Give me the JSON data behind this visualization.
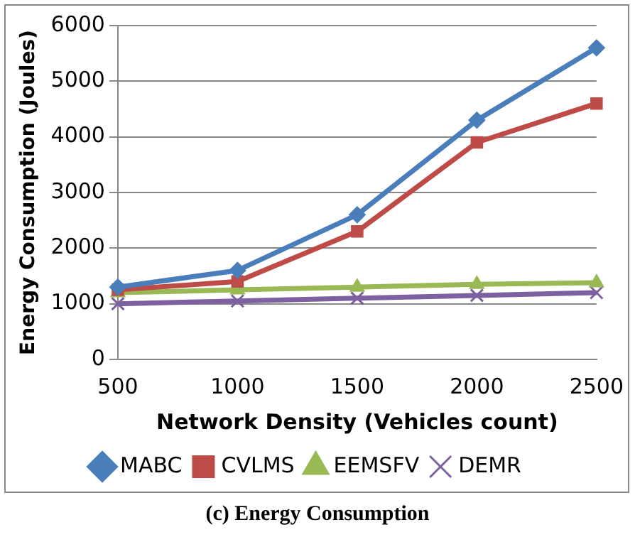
{
  "chart_data": {
    "type": "line",
    "xlabel": "Network Density (Vehicles count)",
    "ylabel": "Energy Consumption (Joules)",
    "categories": [
      "500",
      "1000",
      "1500",
      "2000",
      "2500"
    ],
    "series": [
      {
        "name": "MABC",
        "color": "#4a7ebb",
        "marker": "diamond",
        "values": [
          1300,
          1600,
          2600,
          4300,
          5600
        ]
      },
      {
        "name": "CVLMS",
        "color": "#be4b48",
        "marker": "square",
        "values": [
          1250,
          1400,
          2300,
          3900,
          4600
        ]
      },
      {
        "name": "EEMSFV",
        "color": "#98b954",
        "marker": "triangle",
        "values": [
          1200,
          1250,
          1300,
          1350,
          1380
        ]
      },
      {
        "name": "DEMR",
        "color": "#7d60a0",
        "marker": "cross",
        "values": [
          1000,
          1050,
          1100,
          1150,
          1200
        ]
      }
    ],
    "ylim": [
      0,
      6000
    ],
    "yticks": [
      0,
      1000,
      2000,
      3000,
      4000,
      5000,
      6000
    ],
    "grid": "y",
    "legend": "bottom",
    "line_style": "solid",
    "annotations": [
      "(c) Energy Consumption"
    ]
  }
}
